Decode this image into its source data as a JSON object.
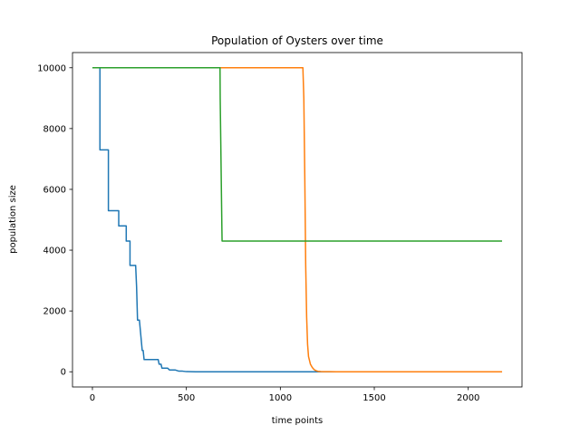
{
  "chart_data": {
    "type": "line",
    "title": "Population of Oysters over time",
    "xlabel": "time points",
    "ylabel": "population size",
    "xlim": [
      -106,
      2286
    ],
    "ylim": [
      -500,
      10500
    ],
    "xticks": [
      0,
      500,
      1000,
      1500,
      2000
    ],
    "yticks": [
      0,
      2000,
      4000,
      6000,
      8000,
      10000
    ],
    "grid": false,
    "series": [
      {
        "color": "#1f77b4",
        "x": [
          0,
          35,
          35,
          40,
          40,
          85,
          85,
          90,
          140,
          140,
          180,
          180,
          200,
          200,
          205,
          210,
          215,
          230,
          235,
          240,
          245,
          250,
          265,
          270,
          275,
          280,
          290,
          350,
          355,
          365,
          370,
          380,
          400,
          410,
          440,
          460,
          480,
          500,
          550,
          2180
        ],
        "y": [
          10000,
          10000,
          10000,
          10000,
          7300,
          7300,
          5300,
          5300,
          5300,
          4800,
          4800,
          4300,
          4300,
          3500,
          3500,
          3500,
          3500,
          3500,
          2800,
          1700,
          1700,
          1700,
          700,
          700,
          400,
          400,
          400,
          400,
          250,
          250,
          120,
          120,
          120,
          60,
          60,
          20,
          20,
          5,
          0,
          0
        ]
      },
      {
        "color": "#ff7f0e",
        "x": [
          0,
          1120,
          1125,
          1130,
          1135,
          1140,
          1145,
          1150,
          1160,
          1170,
          1180,
          1190,
          1200,
          1215,
          1230,
          1260,
          1300,
          2180
        ],
        "y": [
          10000,
          10000,
          9000,
          6500,
          3500,
          1800,
          900,
          500,
          250,
          140,
          70,
          35,
          15,
          8,
          4,
          2,
          0,
          0
        ]
      },
      {
        "color": "#2ca02c",
        "x": [
          0,
          679,
          680,
          689,
          690,
          2180
        ],
        "y": [
          10000,
          10000,
          9000,
          4700,
          4300,
          4300
        ]
      }
    ]
  }
}
